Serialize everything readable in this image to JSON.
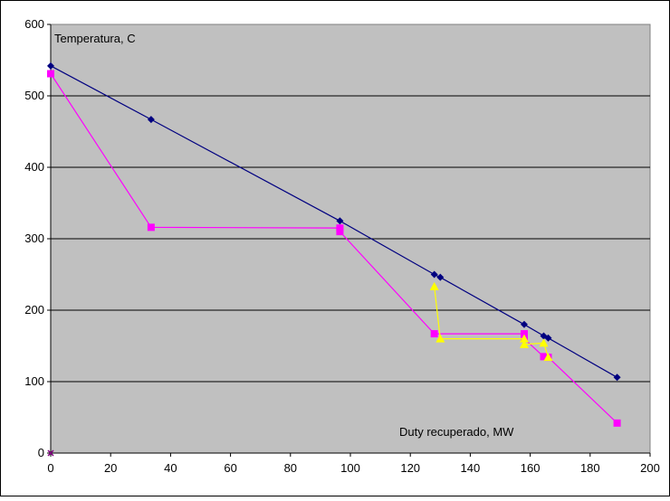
{
  "chart_data": {
    "type": "line",
    "title": "",
    "xlabel": "Duty recuperado, MW",
    "ylabel": "Temperatura, C",
    "xlim": [
      0,
      200
    ],
    "ylim": [
      0,
      600
    ],
    "x_ticks": [
      0,
      20,
      40,
      60,
      80,
      100,
      120,
      140,
      160,
      180,
      200
    ],
    "y_ticks": [
      0,
      100,
      200,
      300,
      400,
      500,
      600
    ],
    "grid": "horizontal",
    "legend": "none",
    "plot_background": "#c0c0c0",
    "series": [
      {
        "color": "#000080",
        "marker": "diamond",
        "points": [
          [
            0,
            542
          ],
          [
            33.5,
            467
          ],
          [
            96.5,
            325
          ],
          [
            128,
            250
          ],
          [
            130,
            246
          ],
          [
            158,
            180
          ],
          [
            164.5,
            164
          ],
          [
            166,
            161
          ],
          [
            189,
            106
          ]
        ]
      },
      {
        "color": "#ff00ff",
        "marker": "square",
        "points": [
          [
            0,
            531
          ],
          [
            33.5,
            316
          ],
          [
            96.5,
            315
          ],
          [
            96.5,
            310
          ],
          [
            128,
            167
          ],
          [
            158,
            167
          ],
          [
            158,
            160
          ],
          [
            164.5,
            135
          ],
          [
            166,
            134
          ],
          [
            189,
            42
          ]
        ]
      },
      {
        "color": "#ffff00",
        "marker": "triangle",
        "points": [
          [
            128,
            233
          ],
          [
            130,
            160
          ],
          [
            158,
            160
          ],
          [
            158,
            152
          ],
          [
            164.5,
            154
          ],
          [
            166,
            134
          ]
        ]
      }
    ],
    "extra_markers": [
      {
        "x": 0,
        "y": 0,
        "color": "#800080",
        "marker": "x"
      }
    ]
  }
}
